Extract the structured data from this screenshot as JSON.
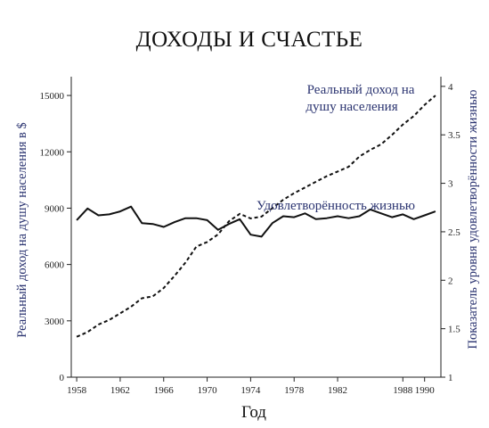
{
  "chart_data": {
    "type": "line",
    "title": "ДОХОДЫ И СЧАСТЬЕ",
    "xlabel": "Год",
    "ylabel_left": "Реальный доход на душу населения в $",
    "ylabel_right": "Показатель уровня удовлетворённости жизнью",
    "xlim": [
      1957.5,
      1991.5
    ],
    "ylim_left": [
      0,
      16000
    ],
    "ylim_right": [
      1,
      4.1
    ],
    "x_ticks": [
      1958,
      1962,
      1966,
      1970,
      1974,
      1978,
      1982,
      1988,
      1990
    ],
    "x_tick_labels": [
      "1958",
      "1962",
      "1966",
      "1970",
      "1974",
      "1978",
      "1982",
      "1988",
      "1990"
    ],
    "y_left_ticks": [
      0,
      3000,
      6000,
      9000,
      12000,
      15000
    ],
    "y_left_tick_labels": [
      "0",
      "3000",
      "6000",
      "9000",
      "12000",
      "15000"
    ],
    "y_right_ticks": [
      1,
      1.5,
      2,
      2.5,
      3,
      3.5,
      4
    ],
    "y_right_tick_labels": [
      "1",
      "1.5",
      "2",
      "2.5",
      "3",
      "3.5",
      "4"
    ],
    "annotations": {
      "income_label": [
        "Реальный доход на",
        "душу населения"
      ],
      "satisfaction_label": "Удовлетворённость жизнью"
    },
    "colors": {
      "line": "#111111",
      "axis_text": "#2a3370",
      "annotation_text": "#2a3370"
    },
    "series": [
      {
        "name": "Реальный доход на душу населения",
        "axis": "left",
        "style": "dashed",
        "x": [
          1958,
          1959,
          1960,
          1961,
          1962,
          1963,
          1964,
          1965,
          1966,
          1967,
          1968,
          1969,
          1970,
          1971,
          1972,
          1973,
          1974,
          1975,
          1976,
          1977,
          1978,
          1979,
          1980,
          1981,
          1982,
          1983,
          1984,
          1985,
          1986,
          1987,
          1988,
          1989,
          1990,
          1991
        ],
        "values": [
          2150,
          2400,
          2800,
          3050,
          3400,
          3750,
          4200,
          4300,
          4750,
          5400,
          6100,
          6950,
          7200,
          7600,
          8300,
          8700,
          8450,
          8550,
          9000,
          9450,
          9800,
          10100,
          10400,
          10700,
          10950,
          11200,
          11750,
          12100,
          12400,
          12900,
          13450,
          13900,
          14500,
          15000
        ]
      },
      {
        "name": "Удовлетворённость жизнью",
        "axis": "right",
        "style": "solid",
        "x": [
          1958,
          1959,
          1960,
          1961,
          1962,
          1963,
          1964,
          1965,
          1966,
          1967,
          1968,
          1969,
          1970,
          1971,
          1972,
          1973,
          1974,
          1975,
          1976,
          1977,
          1978,
          1979,
          1980,
          1981,
          1982,
          1983,
          1984,
          1985,
          1986,
          1987,
          1988,
          1989,
          1990,
          1991
        ],
        "values": [
          2.62,
          2.74,
          2.67,
          2.68,
          2.71,
          2.76,
          2.59,
          2.58,
          2.55,
          2.6,
          2.64,
          2.64,
          2.62,
          2.52,
          2.58,
          2.63,
          2.47,
          2.45,
          2.59,
          2.66,
          2.65,
          2.69,
          2.63,
          2.64,
          2.66,
          2.64,
          2.66,
          2.73,
          2.69,
          2.65,
          2.68,
          2.63,
          2.67,
          2.71
        ]
      }
    ]
  }
}
